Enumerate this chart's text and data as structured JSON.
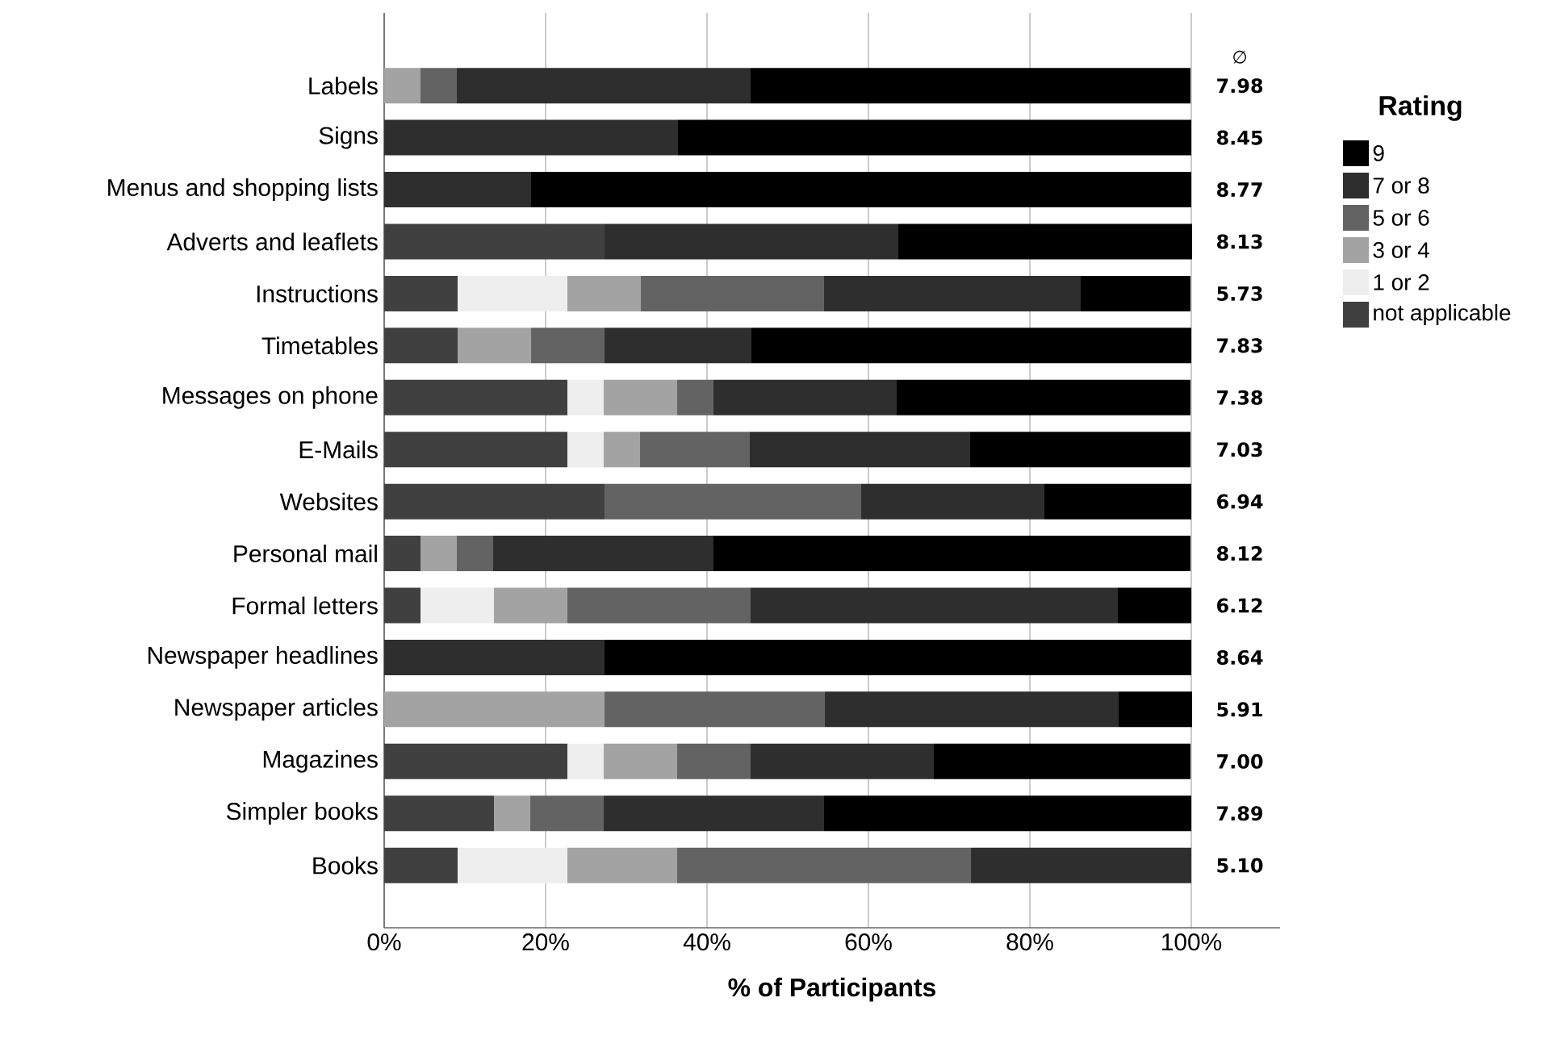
{
  "chart_data": {
    "type": "bar",
    "orientation": "horizontal",
    "stacked": true,
    "categories": [
      "Labels",
      "Signs",
      "Menus and shopping lists",
      "Adverts and leaflets",
      "Instructions",
      "Timetables",
      "Messages on phone",
      "E-Mails",
      "Websites",
      "Personal mail",
      "Formal letters",
      "Newspaper headlines",
      "Newspaper articles",
      "Magazines",
      "Simpler books",
      "Books"
    ],
    "series": [
      {
        "name": "not applicable",
        "color": "#404040",
        "values": [
          0,
          0,
          0,
          27.3,
          9.1,
          9.1,
          22.7,
          22.7,
          27.3,
          4.5,
          4.5,
          0,
          0,
          22.7,
          13.6,
          9.1
        ]
      },
      {
        "name": "1 or 2",
        "color": "#eeeeee",
        "values": [
          0,
          0,
          0,
          0,
          13.6,
          0,
          4.5,
          4.5,
          0,
          0,
          9.1,
          0,
          0,
          4.5,
          0,
          13.6
        ]
      },
      {
        "name": "3 or 4",
        "color": "#a3a3a3",
        "values": [
          4.5,
          0,
          0,
          0,
          9.1,
          9.1,
          9.1,
          4.5,
          0,
          4.5,
          9.1,
          0,
          27.3,
          9.1,
          4.5,
          13.6
        ]
      },
      {
        "name": "5 or 6",
        "color": "#636363",
        "values": [
          4.5,
          0,
          0,
          0,
          22.7,
          9.1,
          4.5,
          13.6,
          31.8,
          4.5,
          22.7,
          0,
          27.3,
          9.1,
          9.1,
          36.4
        ]
      },
      {
        "name": "7 or 8",
        "color": "#2e2e2e",
        "values": [
          36.4,
          36.4,
          18.2,
          36.4,
          31.8,
          18.2,
          22.7,
          27.3,
          22.7,
          27.3,
          45.5,
          27.3,
          36.4,
          22.7,
          27.3,
          27.3
        ]
      },
      {
        "name": "9",
        "color": "#000000",
        "values": [
          54.5,
          63.6,
          81.8,
          36.4,
          13.6,
          54.5,
          36.4,
          27.3,
          18.2,
          59.1,
          9.1,
          72.7,
          9.1,
          31.8,
          45.5,
          0
        ]
      }
    ],
    "xlabel": "% of Participants",
    "legend_title": "Rating",
    "legend": "right",
    "grid": "x",
    "xlim": [
      0,
      111
    ],
    "xticks": [
      {
        "value": 0,
        "label": "0%"
      },
      {
        "value": 20,
        "label": "20%"
      },
      {
        "value": 40,
        "label": "40%"
      },
      {
        "value": 60,
        "label": "60%"
      },
      {
        "value": 80,
        "label": "80%"
      },
      {
        "value": 100,
        "label": "100%"
      }
    ],
    "annotations": [
      "∅",
      "7.98",
      "8.45",
      "8.77",
      "8.13",
      "5.73",
      "7.83",
      "7.38",
      "7.03",
      "6.94",
      "8.12",
      "6.12",
      "8.64",
      "5.91",
      "7.00",
      "7.89",
      "5.10"
    ]
  }
}
